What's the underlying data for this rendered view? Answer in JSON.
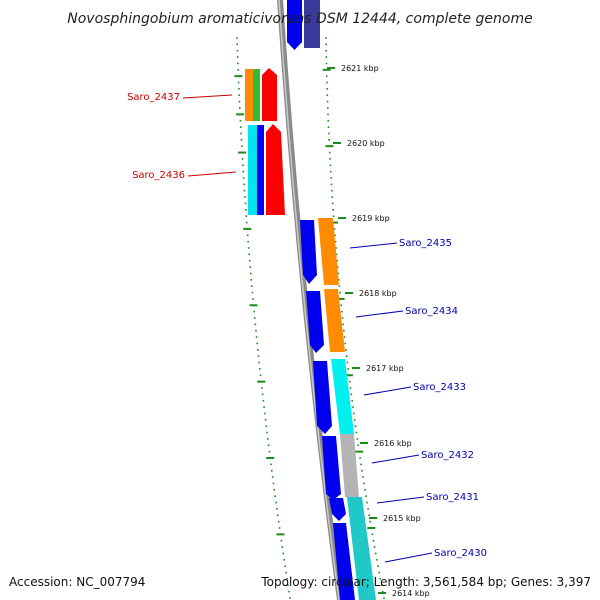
{
  "title": "Novosphingobium aromaticivorans DSM 12444, complete genome",
  "accession": "Accession: NC_007794",
  "topology": "Topology: circular; Length: 3,561,584 bp; Genes: 3,397",
  "colors": {
    "backbone": "#8a8a8a",
    "tick": "#1a8a1a",
    "reverse_label": "#cc0000",
    "forward_label": "#0000aa"
  },
  "kbp_labels": [
    "2621 kbp",
    "2620 kbp",
    "2619 kbp",
    "2618 kbp",
    "2617 kbp",
    "2616 kbp",
    "2615 kbp",
    "2614 kbp"
  ],
  "reverse_genes": [
    {
      "label": "Saro_2437",
      "colors": [
        "#ff8c00",
        "#33bb33",
        "#ff0000"
      ]
    },
    {
      "label": "Saro_2436",
      "colors": [
        "#00e5ee",
        "#0000ff",
        "#ff0000"
      ]
    }
  ],
  "forward_genes": [
    {
      "label": "Saro_2435",
      "colors": [
        "#0000ee",
        "#ff8c00"
      ]
    },
    {
      "label": "Saro_2434",
      "colors": [
        "#0000ee",
        "#ff8c00"
      ]
    },
    {
      "label": "Saro_2433",
      "colors": [
        "#0000ee",
        "#00f0f0"
      ]
    },
    {
      "label": "Saro_2432",
      "colors": [
        "#0000ee",
        "#b4b4b4"
      ]
    },
    {
      "label": "Saro_2431",
      "colors": [
        "#0000ee",
        "#20c8c8"
      ]
    },
    {
      "label": "Saro_2430",
      "colors": [
        "#0000ee",
        "#20c8c8"
      ]
    }
  ]
}
